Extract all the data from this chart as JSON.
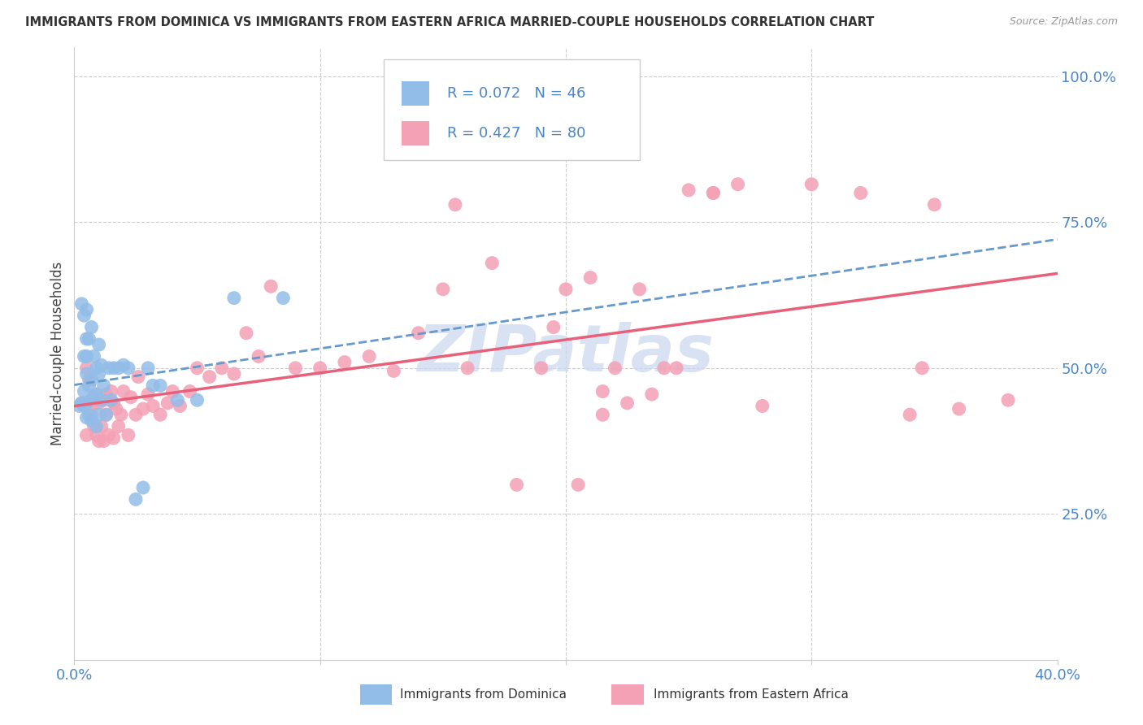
{
  "title": "IMMIGRANTS FROM DOMINICA VS IMMIGRANTS FROM EASTERN AFRICA MARRIED-COUPLE HOUSEHOLDS CORRELATION CHART",
  "source": "Source: ZipAtlas.com",
  "xlabel_dominica": "Immigrants from Dominica",
  "xlabel_eastern_africa": "Immigrants from Eastern Africa",
  "ylabel": "Married-couple Households",
  "xmin": 0.0,
  "xmax": 0.4,
  "ymin": 0.0,
  "ymax": 1.05,
  "R_dominica": 0.072,
  "N_dominica": 46,
  "R_eastern_africa": 0.427,
  "N_eastern_africa": 80,
  "dominica_color": "#92bde8",
  "eastern_africa_color": "#f4a0b5",
  "trendline_dominica_color": "#6699cc",
  "trendline_eastern_color": "#e8607a",
  "watermark_color": "#ccd9f0",
  "background_color": "#ffffff",
  "grid_color": "#cccccc",
  "label_color": "#4a86c8",
  "title_color": "#333333",
  "legend_border_color": "#cccccc",
  "dominica_x": [
    0.002,
    0.003,
    0.003,
    0.004,
    0.004,
    0.004,
    0.004,
    0.005,
    0.005,
    0.005,
    0.005,
    0.005,
    0.005,
    0.006,
    0.006,
    0.006,
    0.007,
    0.007,
    0.007,
    0.008,
    0.008,
    0.009,
    0.009,
    0.009,
    0.01,
    0.01,
    0.01,
    0.011,
    0.011,
    0.012,
    0.013,
    0.014,
    0.015,
    0.016,
    0.018,
    0.02,
    0.022,
    0.025,
    0.028,
    0.03,
    0.032,
    0.035,
    0.042,
    0.05,
    0.065,
    0.085
  ],
  "dominica_y": [
    0.435,
    0.61,
    0.44,
    0.435,
    0.46,
    0.52,
    0.59,
    0.415,
    0.44,
    0.49,
    0.52,
    0.6,
    0.55,
    0.42,
    0.47,
    0.55,
    0.41,
    0.48,
    0.57,
    0.45,
    0.52,
    0.4,
    0.455,
    0.5,
    0.42,
    0.49,
    0.54,
    0.445,
    0.505,
    0.47,
    0.42,
    0.5,
    0.445,
    0.5,
    0.5,
    0.505,
    0.5,
    0.275,
    0.295,
    0.5,
    0.47,
    0.47,
    0.445,
    0.445,
    0.62,
    0.62
  ],
  "eastern_africa_x": [
    0.003,
    0.005,
    0.005,
    0.006,
    0.007,
    0.007,
    0.008,
    0.008,
    0.009,
    0.009,
    0.01,
    0.01,
    0.011,
    0.012,
    0.012,
    0.013,
    0.013,
    0.014,
    0.015,
    0.016,
    0.016,
    0.017,
    0.018,
    0.019,
    0.02,
    0.022,
    0.023,
    0.025,
    0.026,
    0.028,
    0.03,
    0.032,
    0.035,
    0.038,
    0.04,
    0.043,
    0.047,
    0.05,
    0.055,
    0.06,
    0.065,
    0.07,
    0.075,
    0.08,
    0.09,
    0.1,
    0.11,
    0.12,
    0.13,
    0.14,
    0.15,
    0.16,
    0.17,
    0.18,
    0.19,
    0.2,
    0.21,
    0.22,
    0.23,
    0.24,
    0.25,
    0.26,
    0.155,
    0.195,
    0.215,
    0.225,
    0.235,
    0.245,
    0.26,
    0.27,
    0.28,
    0.3,
    0.32,
    0.34,
    0.35,
    0.36,
    0.205,
    0.215,
    0.345,
    0.38
  ],
  "eastern_africa_y": [
    0.44,
    0.5,
    0.385,
    0.48,
    0.42,
    0.445,
    0.4,
    0.44,
    0.385,
    0.455,
    0.375,
    0.44,
    0.4,
    0.375,
    0.445,
    0.42,
    0.455,
    0.385,
    0.46,
    0.44,
    0.38,
    0.43,
    0.4,
    0.42,
    0.46,
    0.385,
    0.45,
    0.42,
    0.485,
    0.43,
    0.455,
    0.435,
    0.42,
    0.44,
    0.46,
    0.435,
    0.46,
    0.5,
    0.485,
    0.5,
    0.49,
    0.56,
    0.52,
    0.64,
    0.5,
    0.5,
    0.51,
    0.52,
    0.495,
    0.56,
    0.635,
    0.5,
    0.68,
    0.3,
    0.5,
    0.635,
    0.655,
    0.5,
    0.635,
    0.5,
    0.805,
    0.8,
    0.78,
    0.57,
    0.42,
    0.44,
    0.455,
    0.5,
    0.8,
    0.815,
    0.435,
    0.815,
    0.8,
    0.42,
    0.78,
    0.43,
    0.3,
    0.46,
    0.5,
    0.445
  ]
}
